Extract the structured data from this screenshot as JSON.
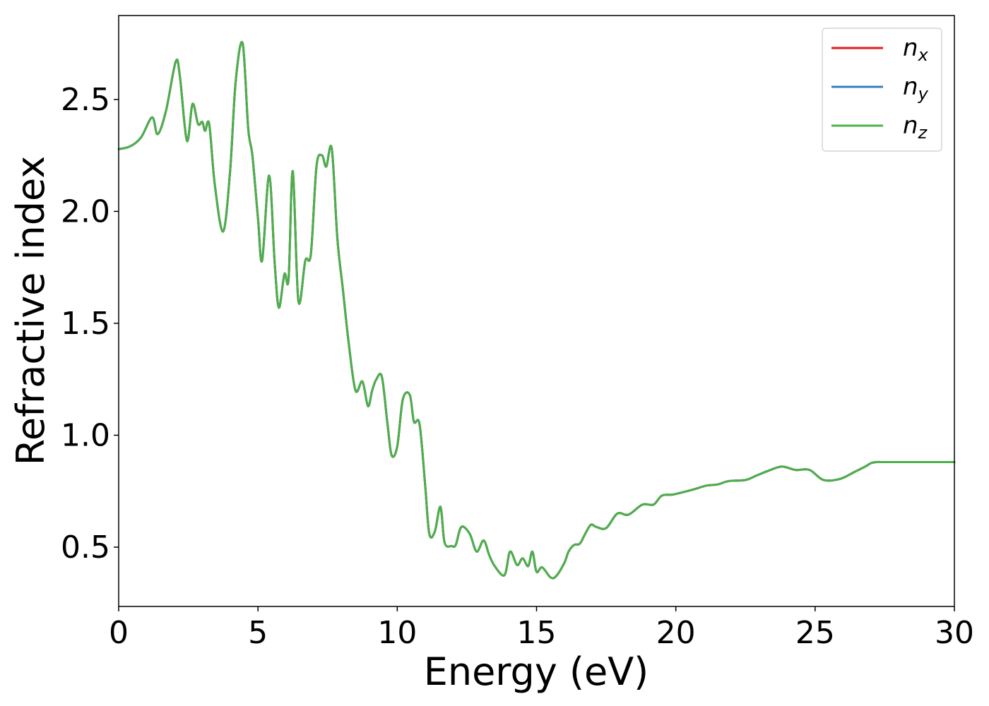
{
  "chart_data": {
    "type": "line",
    "title": "",
    "xlabel": "Energy (eV)",
    "ylabel": "Refractive index",
    "xlim": [
      0,
      30
    ],
    "ylim": [
      0.235,
      2.875
    ],
    "xticks": [
      0,
      5,
      10,
      15,
      20,
      25,
      30
    ],
    "yticks": [
      0.5,
      1.0,
      1.5,
      2.0,
      2.5
    ],
    "xtick_labels": [
      "0",
      "5",
      "10",
      "15",
      "20",
      "25",
      "30"
    ],
    "ytick_labels": [
      "0.5",
      "1.0",
      "1.5",
      "2.0",
      "2.5"
    ],
    "grid": false,
    "legend_position": "top-right",
    "x": [
      0,
      0.4,
      0.8,
      1.2,
      1.4,
      1.7,
      2.05,
      2.2,
      2.45,
      2.65,
      2.85,
      3.0,
      3.1,
      3.25,
      3.45,
      3.75,
      4.0,
      4.2,
      4.45,
      4.65,
      4.8,
      5.0,
      5.15,
      5.4,
      5.6,
      5.75,
      5.95,
      6.1,
      6.25,
      6.45,
      6.7,
      6.9,
      7.1,
      7.3,
      7.45,
      7.65,
      7.85,
      8.05,
      8.25,
      8.5,
      8.75,
      8.95,
      9.1,
      9.25,
      9.45,
      9.65,
      9.8,
      10.0,
      10.2,
      10.45,
      10.6,
      10.8,
      11.0,
      11.15,
      11.35,
      11.55,
      11.7,
      11.95,
      12.1,
      12.3,
      12.6,
      12.85,
      13.1,
      13.3,
      13.5,
      13.85,
      14.05,
      14.3,
      14.5,
      14.7,
      14.85,
      15.0,
      15.2,
      15.5,
      15.7,
      16.0,
      16.15,
      16.35,
      16.55,
      16.75,
      16.95,
      17.15,
      17.5,
      17.9,
      18.3,
      18.8,
      19.2,
      19.5,
      19.9,
      20.4,
      20.7,
      21.1,
      21.5,
      21.9,
      22.5,
      22.9,
      23.3,
      23.8,
      24.3,
      24.8,
      25.3,
      25.9,
      26.4,
      26.8,
      27.0,
      27.2,
      27.45,
      27.65,
      27.85,
      28.1,
      28.5,
      29.0,
      29.5,
      30.0
    ],
    "series": [
      {
        "name": "n_x",
        "color": "#e41a1c",
        "values": [
          2.278,
          2.29,
          2.33,
          2.42,
          2.345,
          2.45,
          2.67,
          2.6,
          2.315,
          2.48,
          2.39,
          2.4,
          2.36,
          2.39,
          2.12,
          1.91,
          2.18,
          2.58,
          2.75,
          2.37,
          2.25,
          1.97,
          1.78,
          2.16,
          1.77,
          1.57,
          1.72,
          1.7,
          2.18,
          1.6,
          1.78,
          1.81,
          2.2,
          2.25,
          2.2,
          2.28,
          1.88,
          1.65,
          1.42,
          1.2,
          1.24,
          1.13,
          1.2,
          1.25,
          1.26,
          1.05,
          0.91,
          0.95,
          1.16,
          1.18,
          1.06,
          1.05,
          0.78,
          0.56,
          0.57,
          0.68,
          0.52,
          0.505,
          0.51,
          0.59,
          0.56,
          0.48,
          0.53,
          0.465,
          0.415,
          0.375,
          0.48,
          0.42,
          0.45,
          0.415,
          0.48,
          0.39,
          0.41,
          0.365,
          0.37,
          0.43,
          0.48,
          0.51,
          0.515,
          0.56,
          0.6,
          0.59,
          0.585,
          0.65,
          0.645,
          0.69,
          0.69,
          0.73,
          0.735,
          0.75,
          0.76,
          0.775,
          0.78,
          0.795,
          0.8,
          0.82,
          0.84,
          0.86,
          0.845,
          0.845,
          0.8,
          0.805,
          0.835,
          0.86,
          0.875,
          0.88,
          0.88,
          0.88,
          0.88,
          0.88,
          0.88,
          0.88,
          0.88,
          0.88
        ]
      },
      {
        "name": "n_y",
        "color": "#377eb8",
        "values": [
          2.278,
          2.29,
          2.33,
          2.42,
          2.345,
          2.45,
          2.67,
          2.6,
          2.315,
          2.48,
          2.39,
          2.4,
          2.36,
          2.39,
          2.12,
          1.91,
          2.18,
          2.58,
          2.75,
          2.37,
          2.25,
          1.97,
          1.78,
          2.16,
          1.77,
          1.57,
          1.72,
          1.7,
          2.18,
          1.6,
          1.78,
          1.81,
          2.2,
          2.25,
          2.2,
          2.28,
          1.88,
          1.65,
          1.42,
          1.2,
          1.24,
          1.13,
          1.2,
          1.25,
          1.26,
          1.05,
          0.91,
          0.95,
          1.16,
          1.18,
          1.06,
          1.05,
          0.78,
          0.56,
          0.57,
          0.68,
          0.52,
          0.505,
          0.51,
          0.59,
          0.56,
          0.48,
          0.53,
          0.465,
          0.415,
          0.375,
          0.48,
          0.42,
          0.45,
          0.415,
          0.48,
          0.39,
          0.41,
          0.365,
          0.37,
          0.43,
          0.48,
          0.51,
          0.515,
          0.56,
          0.6,
          0.59,
          0.585,
          0.65,
          0.645,
          0.69,
          0.69,
          0.73,
          0.735,
          0.75,
          0.76,
          0.775,
          0.78,
          0.795,
          0.8,
          0.82,
          0.84,
          0.86,
          0.845,
          0.845,
          0.8,
          0.805,
          0.835,
          0.86,
          0.875,
          0.88,
          0.88,
          0.88,
          0.88,
          0.88,
          0.88,
          0.88,
          0.88,
          0.88
        ]
      },
      {
        "name": "n_z",
        "color": "#4daf4a",
        "values": [
          2.278,
          2.29,
          2.33,
          2.42,
          2.345,
          2.45,
          2.67,
          2.6,
          2.315,
          2.48,
          2.39,
          2.4,
          2.36,
          2.39,
          2.12,
          1.91,
          2.18,
          2.58,
          2.75,
          2.37,
          2.25,
          1.97,
          1.78,
          2.16,
          1.77,
          1.57,
          1.72,
          1.7,
          2.18,
          1.6,
          1.78,
          1.81,
          2.2,
          2.25,
          2.2,
          2.28,
          1.88,
          1.65,
          1.42,
          1.2,
          1.24,
          1.13,
          1.2,
          1.25,
          1.26,
          1.05,
          0.91,
          0.95,
          1.16,
          1.18,
          1.06,
          1.05,
          0.78,
          0.56,
          0.57,
          0.68,
          0.52,
          0.505,
          0.51,
          0.59,
          0.56,
          0.48,
          0.53,
          0.465,
          0.415,
          0.375,
          0.48,
          0.42,
          0.45,
          0.415,
          0.48,
          0.39,
          0.41,
          0.365,
          0.37,
          0.43,
          0.48,
          0.51,
          0.515,
          0.56,
          0.6,
          0.59,
          0.585,
          0.65,
          0.645,
          0.69,
          0.69,
          0.73,
          0.735,
          0.75,
          0.76,
          0.775,
          0.78,
          0.795,
          0.8,
          0.82,
          0.84,
          0.86,
          0.845,
          0.845,
          0.8,
          0.805,
          0.835,
          0.86,
          0.875,
          0.88,
          0.88,
          0.88,
          0.88,
          0.88,
          0.88,
          0.88,
          0.88,
          0.88
        ]
      }
    ],
    "legend": [
      {
        "main": "n",
        "sub": "x",
        "color": "#e41a1c"
      },
      {
        "main": "n",
        "sub": "y",
        "color": "#377eb8"
      },
      {
        "main": "n",
        "sub": "z",
        "color": "#4daf4a"
      }
    ]
  }
}
